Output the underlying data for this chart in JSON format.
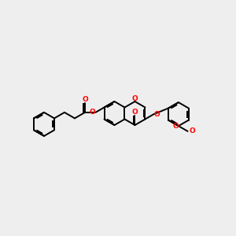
{
  "background_color": "#eeeeee",
  "bond_color": "#000000",
  "oxygen_color": "#ff0000",
  "line_width": 1.4,
  "fig_size": [
    3.0,
    3.0
  ],
  "dpi": 100,
  "xlim": [
    0,
    10
  ],
  "ylim": [
    0,
    10
  ]
}
